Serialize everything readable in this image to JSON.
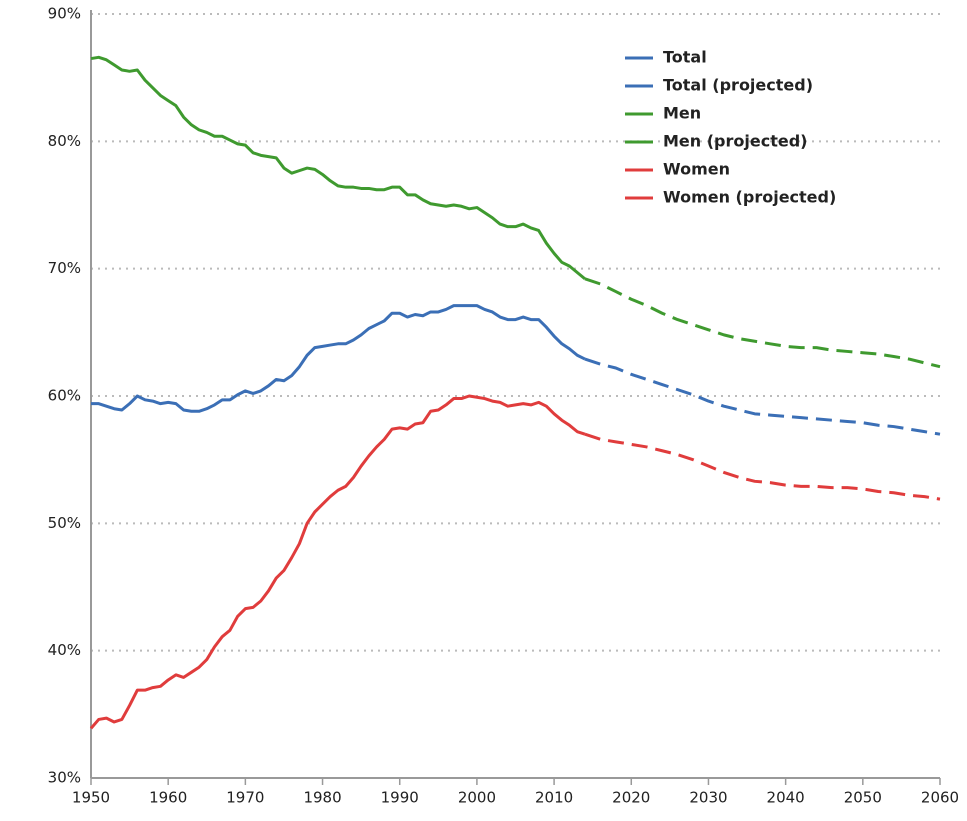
{
  "chart_data": {
    "type": "line",
    "xlim": [
      1950,
      2060
    ],
    "xticks": [
      1950,
      1960,
      1970,
      1980,
      1990,
      2000,
      2010,
      2020,
      2030,
      2040,
      2050,
      2060
    ],
    "ylim": [
      30,
      90
    ],
    "yticks": [
      {
        "value": 30,
        "label": "30%"
      },
      {
        "value": 40,
        "label": "40%"
      },
      {
        "value": 50,
        "label": "50%"
      },
      {
        "value": 60,
        "label": "60%"
      },
      {
        "value": 70,
        "label": "70%"
      },
      {
        "value": 80,
        "label": "80%"
      },
      {
        "value": 90,
        "label": "90%"
      }
    ],
    "grid": true,
    "legend": "top-right",
    "series": [
      {
        "name": "Total",
        "color": "#3b6fb6",
        "dashed": false,
        "x": [
          1950,
          1951,
          1952,
          1953,
          1954,
          1955,
          1956,
          1957,
          1958,
          1959,
          1960,
          1961,
          1962,
          1963,
          1964,
          1965,
          1966,
          1967,
          1968,
          1969,
          1970,
          1971,
          1972,
          1973,
          1974,
          1975,
          1976,
          1977,
          1978,
          1979,
          1980,
          1981,
          1982,
          1983,
          1984,
          1985,
          1986,
          1987,
          1988,
          1989,
          1990,
          1991,
          1992,
          1993,
          1994,
          1995,
          1996,
          1997,
          1998,
          1999,
          2000,
          2001,
          2002,
          2003,
          2004,
          2005,
          2006,
          2007,
          2008,
          2009,
          2010,
          2011,
          2012,
          2013,
          2014
        ],
        "values": [
          59.4,
          59.4,
          59.2,
          59.0,
          58.9,
          59.4,
          60.0,
          59.7,
          59.6,
          59.4,
          59.5,
          59.4,
          58.9,
          58.8,
          58.8,
          59.0,
          59.3,
          59.7,
          59.7,
          60.1,
          60.4,
          60.2,
          60.4,
          60.8,
          61.3,
          61.2,
          61.6,
          62.3,
          63.2,
          63.8,
          63.9,
          64.0,
          64.1,
          64.1,
          64.4,
          64.8,
          65.3,
          65.6,
          65.9,
          66.5,
          66.5,
          66.2,
          66.4,
          66.3,
          66.6,
          66.6,
          66.8,
          67.1,
          67.1,
          67.1,
          67.1,
          66.8,
          66.6,
          66.2,
          66.0,
          66.0,
          66.2,
          66.0,
          66.0,
          65.4,
          64.7,
          64.1,
          63.7,
          63.2,
          62.9
        ]
      },
      {
        "name": "Total (projected)",
        "color": "#3b6fb6",
        "dashed": true,
        "x": [
          2014,
          2016,
          2018,
          2020,
          2022,
          2024,
          2026,
          2028,
          2030,
          2032,
          2034,
          2036,
          2038,
          2040,
          2042,
          2044,
          2046,
          2048,
          2050,
          2052,
          2054,
          2056,
          2058,
          2060
        ],
        "values": [
          62.9,
          62.5,
          62.2,
          61.7,
          61.3,
          60.9,
          60.5,
          60.1,
          59.6,
          59.2,
          58.9,
          58.6,
          58.5,
          58.4,
          58.3,
          58.2,
          58.1,
          58.0,
          57.9,
          57.7,
          57.6,
          57.4,
          57.2,
          57.0
        ]
      },
      {
        "name": "Men",
        "color": "#3f9a2f",
        "dashed": false,
        "x": [
          1950,
          1951,
          1952,
          1953,
          1954,
          1955,
          1956,
          1957,
          1958,
          1959,
          1960,
          1961,
          1962,
          1963,
          1964,
          1965,
          1966,
          1967,
          1968,
          1969,
          1970,
          1971,
          1972,
          1973,
          1974,
          1975,
          1976,
          1977,
          1978,
          1979,
          1980,
          1981,
          1982,
          1983,
          1984,
          1985,
          1986,
          1987,
          1988,
          1989,
          1990,
          1991,
          1992,
          1993,
          1994,
          1995,
          1996,
          1997,
          1998,
          1999,
          2000,
          2001,
          2002,
          2003,
          2004,
          2005,
          2006,
          2007,
          2008,
          2009,
          2010,
          2011,
          2012,
          2013,
          2014
        ],
        "values": [
          86.5,
          86.6,
          86.4,
          86.0,
          85.6,
          85.5,
          85.6,
          84.8,
          84.2,
          83.6,
          83.2,
          82.8,
          81.9,
          81.3,
          80.9,
          80.7,
          80.4,
          80.4,
          80.1,
          79.8,
          79.7,
          79.1,
          78.9,
          78.8,
          78.7,
          77.9,
          77.5,
          77.7,
          77.9,
          77.8,
          77.4,
          76.9,
          76.5,
          76.4,
          76.4,
          76.3,
          76.3,
          76.2,
          76.2,
          76.4,
          76.4,
          75.8,
          75.8,
          75.4,
          75.1,
          75.0,
          74.9,
          75.0,
          74.9,
          74.7,
          74.8,
          74.4,
          74.0,
          73.5,
          73.3,
          73.3,
          73.5,
          73.2,
          73.0,
          72.0,
          71.2,
          70.5,
          70.2,
          69.7,
          69.2
        ]
      },
      {
        "name": "Men (projected)",
        "color": "#3f9a2f",
        "dashed": true,
        "x": [
          2014,
          2016,
          2018,
          2020,
          2022,
          2024,
          2026,
          2028,
          2030,
          2032,
          2034,
          2036,
          2038,
          2040,
          2042,
          2044,
          2046,
          2048,
          2050,
          2052,
          2054,
          2056,
          2058,
          2060
        ],
        "values": [
          69.2,
          68.8,
          68.2,
          67.6,
          67.1,
          66.5,
          66.0,
          65.6,
          65.2,
          64.8,
          64.5,
          64.3,
          64.1,
          63.9,
          63.8,
          63.8,
          63.6,
          63.5,
          63.4,
          63.3,
          63.1,
          62.9,
          62.6,
          62.3
        ]
      },
      {
        "name": "Women",
        "color": "#e03c3c",
        "dashed": false,
        "x": [
          1950,
          1951,
          1952,
          1953,
          1954,
          1955,
          1956,
          1957,
          1958,
          1959,
          1960,
          1961,
          1962,
          1963,
          1964,
          1965,
          1966,
          1967,
          1968,
          1969,
          1970,
          1971,
          1972,
          1973,
          1974,
          1975,
          1976,
          1977,
          1978,
          1979,
          1980,
          1981,
          1982,
          1983,
          1984,
          1985,
          1986,
          1987,
          1988,
          1989,
          1990,
          1991,
          1992,
          1993,
          1994,
          1995,
          1996,
          1997,
          1998,
          1999,
          2000,
          2001,
          2002,
          2003,
          2004,
          2005,
          2006,
          2007,
          2008,
          2009,
          2010,
          2011,
          2012,
          2013,
          2014
        ],
        "values": [
          33.9,
          34.6,
          34.7,
          34.4,
          34.6,
          35.7,
          36.9,
          36.9,
          37.1,
          37.2,
          37.7,
          38.1,
          37.9,
          38.3,
          38.7,
          39.3,
          40.3,
          41.1,
          41.6,
          42.7,
          43.3,
          43.4,
          43.9,
          44.7,
          45.7,
          46.3,
          47.3,
          48.4,
          50.0,
          50.9,
          51.5,
          52.1,
          52.6,
          52.9,
          53.6,
          54.5,
          55.3,
          56.0,
          56.6,
          57.4,
          57.5,
          57.4,
          57.8,
          57.9,
          58.8,
          58.9,
          59.3,
          59.8,
          59.8,
          60.0,
          59.9,
          59.8,
          59.6,
          59.5,
          59.2,
          59.3,
          59.4,
          59.3,
          59.5,
          59.2,
          58.6,
          58.1,
          57.7,
          57.2,
          57.0
        ]
      },
      {
        "name": "Women (projected)",
        "color": "#e03c3c",
        "dashed": true,
        "x": [
          2014,
          2016,
          2018,
          2020,
          2022,
          2024,
          2026,
          2028,
          2030,
          2032,
          2034,
          2036,
          2038,
          2040,
          2042,
          2044,
          2046,
          2048,
          2050,
          2052,
          2054,
          2056,
          2058,
          2060
        ],
        "values": [
          57.0,
          56.6,
          56.4,
          56.2,
          56.0,
          55.7,
          55.4,
          55.0,
          54.5,
          54.0,
          53.6,
          53.3,
          53.2,
          53.0,
          52.9,
          52.9,
          52.8,
          52.8,
          52.7,
          52.5,
          52.4,
          52.2,
          52.1,
          51.9
        ]
      }
    ]
  }
}
